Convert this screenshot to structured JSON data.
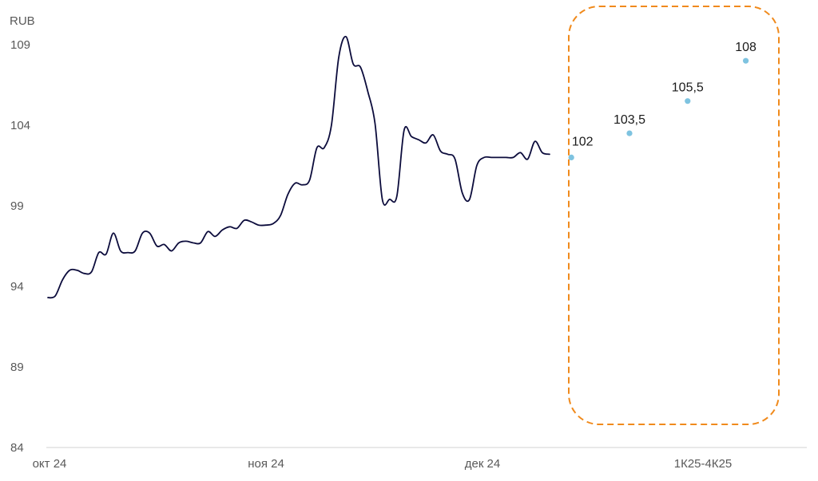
{
  "chart_data": {
    "type": "line",
    "title": "",
    "xlabel": "",
    "ylabel": "RUB",
    "ylim": [
      84,
      110
    ],
    "yticks": [
      "84",
      "89",
      "94",
      "99",
      "104",
      "109"
    ],
    "xticks": [
      "окт 24",
      "ноя 24",
      "дек 24",
      "1К25-4К25"
    ],
    "grid": false,
    "legend": "none",
    "series": [
      {
        "values": [
          93.3,
          93.4,
          94.4,
          95.0,
          95.0,
          94.8,
          94.9,
          96.1,
          96.0,
          97.3,
          96.2,
          96.1,
          96.2,
          97.3,
          97.3,
          96.5,
          96.6,
          96.2,
          96.7,
          96.8,
          96.7,
          96.7,
          97.4,
          97.1,
          97.5,
          97.7,
          97.6,
          98.1,
          98.0,
          97.8,
          97.8,
          97.9,
          98.4,
          99.7,
          100.4,
          100.3,
          100.6,
          102.6,
          102.6,
          104.0,
          108.2,
          109.5,
          107.8,
          107.6,
          106.1,
          104.1,
          99.4,
          99.4,
          99.6,
          103.7,
          103.3,
          103.1,
          102.9,
          103.4,
          102.4,
          102.2,
          101.9,
          99.8,
          99.4,
          101.5,
          102.0,
          102.0,
          102.0,
          102.0,
          102.0,
          102.3,
          101.9,
          103.0,
          102.3,
          102.2
        ],
        "color": "#0c0c3c"
      }
    ],
    "forecast": {
      "points": [
        {
          "x_index": 72.0,
          "value": 102.0,
          "label": "102"
        },
        {
          "x_index": 80.0,
          "value": 103.5,
          "label": "103,5"
        },
        {
          "x_index": 88.0,
          "value": 105.5,
          "label": "105,5"
        },
        {
          "x_index": 96.0,
          "value": 108.0,
          "label": "108"
        }
      ],
      "color": "#7ec3e0",
      "box_color": "#f08a1c"
    }
  }
}
